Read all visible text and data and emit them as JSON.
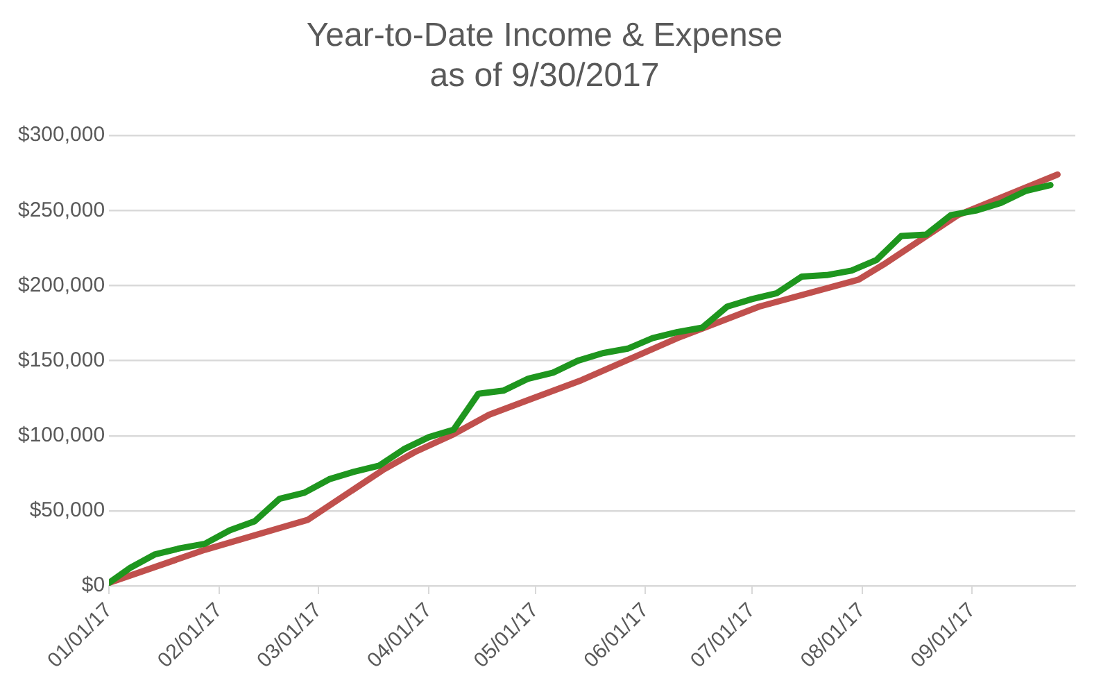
{
  "chart_data": {
    "type": "line",
    "title": "Year-to-Date Income & Expense\nas of 9/30/2017",
    "xlim": [
      "2017-01-01",
      "2017-09-30"
    ],
    "xticks": [
      {
        "value": "2017-01-01",
        "label": "01/01/17"
      },
      {
        "value": "2017-02-01",
        "label": "02/01/17"
      },
      {
        "value": "2017-03-01",
        "label": "03/01/17"
      },
      {
        "value": "2017-04-01",
        "label": "04/01/17"
      },
      {
        "value": "2017-05-01",
        "label": "05/01/17"
      },
      {
        "value": "2017-06-01",
        "label": "06/01/17"
      },
      {
        "value": "2017-07-01",
        "label": "07/01/17"
      },
      {
        "value": "2017-08-01",
        "label": "08/01/17"
      },
      {
        "value": "2017-09-01",
        "label": "09/01/17"
      }
    ],
    "ylim": [
      0,
      300000
    ],
    "yticks": [
      {
        "value": 0,
        "label": "$0"
      },
      {
        "value": 50000,
        "label": "$50,000"
      },
      {
        "value": 100000,
        "label": "$100,000"
      },
      {
        "value": 150000,
        "label": "$150,000"
      },
      {
        "value": 200000,
        "label": "$200,000"
      },
      {
        "value": 250000,
        "label": "$250,000"
      },
      {
        "value": 300000,
        "label": "$300,000"
      }
    ],
    "grid": "y",
    "legend": false,
    "marker": "none",
    "line_style": "solid",
    "series": [
      {
        "color": "#1e961e",
        "x": [
          "2017-01-01",
          "2017-01-07",
          "2017-01-14",
          "2017-01-21",
          "2017-01-28",
          "2017-02-04",
          "2017-02-11",
          "2017-02-18",
          "2017-02-25",
          "2017-03-04",
          "2017-03-11",
          "2017-03-18",
          "2017-03-25",
          "2017-04-01",
          "2017-04-08",
          "2017-04-15",
          "2017-04-22",
          "2017-04-29",
          "2017-05-06",
          "2017-05-13",
          "2017-05-20",
          "2017-05-27",
          "2017-06-03",
          "2017-06-10",
          "2017-06-17",
          "2017-06-24",
          "2017-07-01",
          "2017-07-08",
          "2017-07-15",
          "2017-07-22",
          "2017-07-29",
          "2017-08-05",
          "2017-08-12",
          "2017-08-19",
          "2017-08-26",
          "2017-09-02",
          "2017-09-09",
          "2017-09-16",
          "2017-09-23"
        ],
        "values": [
          2000,
          12000,
          21000,
          25000,
          28000,
          37000,
          43000,
          58000,
          62000,
          71000,
          76000,
          80000,
          91000,
          99000,
          104000,
          128000,
          130000,
          138000,
          142000,
          150000,
          155000,
          158000,
          165000,
          169000,
          172000,
          186000,
          191000,
          195000,
          206000,
          207000,
          210000,
          217000,
          233000,
          234000,
          247000,
          250000,
          255000,
          263000,
          267000
        ]
      },
      {
        "color": "#c0504d",
        "x": [
          "2017-01-01",
          "2017-01-28",
          "2017-02-26",
          "2017-03-19",
          "2017-03-28",
          "2017-04-08",
          "2017-04-18",
          "2017-05-14",
          "2017-06-10",
          "2017-07-03",
          "2017-07-31",
          "2017-08-07",
          "2017-08-28",
          "2017-09-25"
        ],
        "values": [
          2000,
          24000,
          44000,
          77000,
          89000,
          101000,
          114000,
          137000,
          165000,
          186000,
          204000,
          214000,
          247000,
          274000
        ]
      }
    ]
  }
}
